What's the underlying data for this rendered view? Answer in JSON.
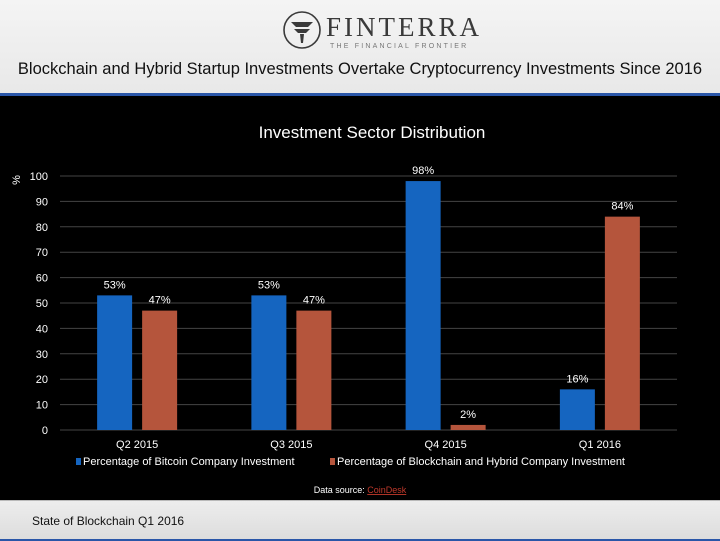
{
  "header": {
    "brand_name": "FINTERRA",
    "brand_tagline": "THE FINANCIAL FRONTIER",
    "slide_title": "Blockchain and Hybrid Startup Investments Overtake Cryptocurrency Investments Since 2016"
  },
  "footer": {
    "text": "State of Blockchain Q1 2016"
  },
  "colors": {
    "bitcoin": "#1565c0",
    "blockchain": "#b5553c",
    "background": "#000000",
    "text": "#ffffff",
    "grid": "#444444",
    "link": "#c0392b",
    "accent": "#2a56a8"
  },
  "chart_data": {
    "type": "bar",
    "title": "Investment Sector Distribution",
    "ylabel": "%",
    "xlabel": "",
    "ylim": [
      0,
      100
    ],
    "yticks": [
      0,
      10,
      20,
      30,
      40,
      50,
      60,
      70,
      80,
      90,
      100
    ],
    "categories": [
      "Q2 2015",
      "Q3 2015",
      "Q4 2015",
      "Q1 2016"
    ],
    "series": [
      {
        "name": "Percentage of Bitcoin Company Investment",
        "values": [
          53,
          53,
          98,
          16
        ],
        "labels": [
          "53%",
          "53%",
          "98%",
          "16%"
        ]
      },
      {
        "name": "Percentage of Blockchain and Hybrid Company Investment",
        "values": [
          47,
          47,
          2,
          84
        ],
        "labels": [
          "47%",
          "47%",
          "2%",
          "84%"
        ]
      }
    ],
    "legend_position": "bottom",
    "grid": true,
    "source_prefix": "Data source: ",
    "source_link": "CoinDesk"
  }
}
